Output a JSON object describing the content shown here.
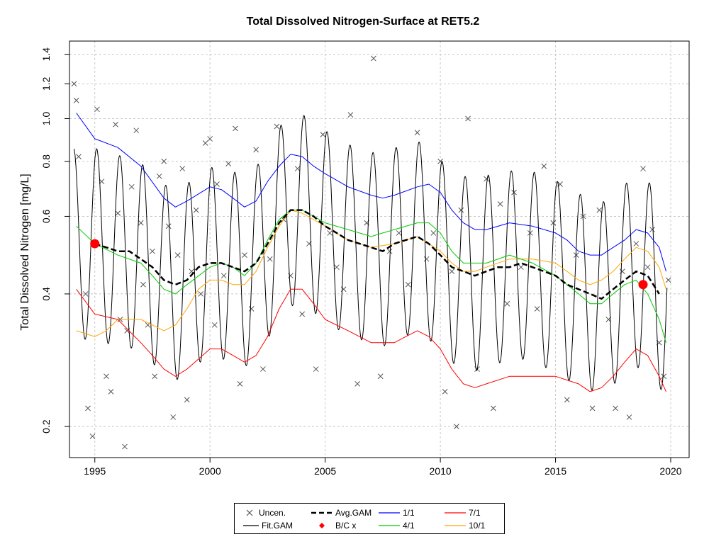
{
  "chart_data": {
    "type": "line",
    "title": "Total Dissolved Nitrogen-Surface at RET5.2",
    "xlabel": "",
    "ylabel": "Total Dissolved Nitrogen [mg/L]",
    "xlim": [
      1993.9,
      2020.8
    ],
    "ylim": [
      0.17,
      1.5
    ],
    "y_scale": "log",
    "x_ticks": [
      1995,
      2000,
      2005,
      2010,
      2015,
      2020
    ],
    "y_ticks": [
      0.2,
      0.4,
      0.6,
      0.8,
      1.0,
      1.2,
      1.4
    ],
    "y_tick_labels": [
      "0.2",
      "0.4",
      "0.6",
      "0.8",
      "1.0",
      "1.2",
      "1.4"
    ],
    "grid": true,
    "legend_position": "bottom",
    "series": [
      {
        "name": "Uncen.",
        "kind": "points",
        "color": "#555555",
        "x": [
          1994.1,
          1994.2,
          1994.3,
          1994.6,
          1994.7,
          1994.9,
          1995.1,
          1995.3,
          1995.5,
          1995.7,
          1995.9,
          1996.0,
          1996.1,
          1996.3,
          1996.4,
          1996.6,
          1996.8,
          1997.0,
          1997.1,
          1997.3,
          1997.5,
          1997.6,
          1997.8,
          1998.0,
          1998.2,
          1998.4,
          1998.6,
          1998.8,
          1999.0,
          1999.2,
          1999.4,
          1999.6,
          1999.8,
          2000.0,
          2000.2,
          2000.3,
          2000.6,
          2000.8,
          2001.1,
          2001.3,
          2001.5,
          2001.8,
          2002.0,
          2002.3,
          2002.6,
          2002.9,
          2003.2,
          2003.5,
          2003.8,
          2004.0,
          2004.3,
          2004.6,
          2004.9,
          2005.2,
          2005.5,
          2005.8,
          2006.1,
          2006.4,
          2006.8,
          2007.1,
          2007.4,
          2007.8,
          2008.2,
          2008.6,
          2009.0,
          2009.4,
          2009.7,
          2010.0,
          2010.2,
          2010.5,
          2010.7,
          2010.9,
          2011.2,
          2011.6,
          2012.0,
          2012.3,
          2012.6,
          2012.9,
          2013.2,
          2013.5,
          2013.9,
          2014.2,
          2014.5,
          2014.9,
          2015.2,
          2015.5,
          2015.9,
          2016.2,
          2016.6,
          2016.9,
          2017.3,
          2017.6,
          2017.9,
          2018.2,
          2018.5,
          2018.8,
          2019.0,
          2019.2,
          2019.5,
          2019.7,
          2019.9
        ],
        "y": [
          1.2,
          1.1,
          0.82,
          0.4,
          0.22,
          0.19,
          1.05,
          0.72,
          0.26,
          0.24,
          0.97,
          0.61,
          0.35,
          0.18,
          0.33,
          0.7,
          0.94,
          0.58,
          0.42,
          0.34,
          0.5,
          0.26,
          0.74,
          0.8,
          0.57,
          0.21,
          0.49,
          0.77,
          0.23,
          0.45,
          0.62,
          0.4,
          0.88,
          0.9,
          0.34,
          0.71,
          0.44,
          0.79,
          0.95,
          0.25,
          0.49,
          0.37,
          0.85,
          0.27,
          0.48,
          0.96,
          0.59,
          0.44,
          0.77,
          0.36,
          0.52,
          0.27,
          0.92,
          0.55,
          0.46,
          0.41,
          1.02,
          0.25,
          0.58,
          1.37,
          0.26,
          0.5,
          0.55,
          0.42,
          0.93,
          0.48,
          0.55,
          0.8,
          0.24,
          0.45,
          0.2,
          0.62,
          1.0,
          0.27,
          0.73,
          0.22,
          0.64,
          0.38,
          0.68,
          0.46,
          0.55,
          0.37,
          0.78,
          0.58,
          0.71,
          0.23,
          0.49,
          0.6,
          0.22,
          0.62,
          0.35,
          0.22,
          0.45,
          0.21,
          0.52,
          0.77,
          0.46,
          0.56,
          0.31,
          0.26,
          0.43
        ]
      },
      {
        "name": "Fit.GAM",
        "kind": "seasonal",
        "color": "#000000",
        "base_series": "Avg.GAM",
        "amplitude_log": 0.5
      },
      {
        "name": "Avg.GAM",
        "kind": "line",
        "color": "#000000",
        "dashed": true,
        "x": [
          1995.0,
          1995.5,
          1996.0,
          1996.5,
          1997.0,
          1997.5,
          1998.0,
          1998.5,
          1999.0,
          1999.5,
          2000.0,
          2000.5,
          2001.0,
          2001.5,
          2002.0,
          2002.5,
          2003.0,
          2003.5,
          2004.0,
          2004.5,
          2005.0,
          2005.5,
          2006.0,
          2006.5,
          2007.0,
          2007.5,
          2008.0,
          2008.5,
          2009.0,
          2009.5,
          2010.0,
          2010.5,
          2011.0,
          2011.5,
          2012.0,
          2012.5,
          2013.0,
          2013.5,
          2014.0,
          2014.5,
          2015.0,
          2015.5,
          2016.0,
          2016.5,
          2017.0,
          2017.5,
          2018.0,
          2018.5,
          2019.0,
          2019.5
        ],
        "y": [
          0.52,
          0.51,
          0.5,
          0.5,
          0.48,
          0.46,
          0.43,
          0.42,
          0.43,
          0.46,
          0.47,
          0.47,
          0.46,
          0.45,
          0.47,
          0.52,
          0.58,
          0.62,
          0.62,
          0.6,
          0.57,
          0.55,
          0.53,
          0.52,
          0.51,
          0.5,
          0.52,
          0.53,
          0.54,
          0.52,
          0.49,
          0.46,
          0.45,
          0.44,
          0.45,
          0.46,
          0.46,
          0.47,
          0.46,
          0.45,
          0.44,
          0.42,
          0.41,
          0.4,
          0.39,
          0.41,
          0.43,
          0.45,
          0.44,
          0.4
        ]
      },
      {
        "name": "1/1",
        "kind": "line",
        "color": "#0000ff",
        "x": [
          1994.2,
          1995.0,
          1996.0,
          1997.0,
          1998.0,
          1998.5,
          1999.0,
          2000.0,
          2000.5,
          2001.0,
          2001.5,
          2002.0,
          2002.5,
          2003.0,
          2003.5,
          2004.0,
          2004.5,
          2005.0,
          2006.0,
          2007.0,
          2007.5,
          2008.0,
          2009.0,
          2009.5,
          2010.0,
          2010.5,
          2011.0,
          2011.5,
          2012.0,
          2013.0,
          2014.0,
          2015.0,
          2015.5,
          2016.0,
          2016.5,
          2017.0,
          2017.5,
          2018.0,
          2018.5,
          2019.0,
          2019.5,
          2019.8
        ],
        "y": [
          1.03,
          0.9,
          0.86,
          0.78,
          0.66,
          0.63,
          0.65,
          0.7,
          0.69,
          0.66,
          0.63,
          0.65,
          0.72,
          0.78,
          0.83,
          0.82,
          0.78,
          0.75,
          0.7,
          0.67,
          0.66,
          0.67,
          0.7,
          0.71,
          0.68,
          0.62,
          0.58,
          0.56,
          0.56,
          0.58,
          0.57,
          0.55,
          0.53,
          0.5,
          0.49,
          0.49,
          0.51,
          0.53,
          0.56,
          0.55,
          0.51,
          0.45
        ]
      },
      {
        "name": "4/1",
        "kind": "line",
        "color": "#00cc00",
        "x": [
          1994.2,
          1995.0,
          1996.0,
          1997.0,
          1997.5,
          1998.0,
          1998.5,
          1999.0,
          2000.0,
          2000.5,
          2001.0,
          2001.5,
          2002.0,
          2002.5,
          2003.0,
          2003.5,
          2004.0,
          2004.5,
          2005.0,
          2006.0,
          2007.0,
          2007.5,
          2008.0,
          2009.0,
          2009.5,
          2010.0,
          2010.5,
          2011.0,
          2011.5,
          2012.0,
          2013.0,
          2014.0,
          2015.0,
          2015.5,
          2016.0,
          2016.5,
          2017.0,
          2017.5,
          2018.0,
          2018.5,
          2019.0,
          2019.5,
          2019.8
        ],
        "y": [
          0.57,
          0.52,
          0.49,
          0.47,
          0.44,
          0.41,
          0.4,
          0.42,
          0.46,
          0.47,
          0.46,
          0.44,
          0.47,
          0.53,
          0.59,
          0.62,
          0.62,
          0.6,
          0.58,
          0.56,
          0.54,
          0.55,
          0.56,
          0.58,
          0.58,
          0.55,
          0.5,
          0.47,
          0.47,
          0.47,
          0.49,
          0.47,
          0.44,
          0.42,
          0.4,
          0.38,
          0.38,
          0.4,
          0.42,
          0.43,
          0.4,
          0.35,
          0.31
        ]
      },
      {
        "name": "7/1",
        "kind": "line",
        "color": "#ff0000",
        "x": [
          1994.2,
          1995.0,
          1996.0,
          1997.0,
          1997.5,
          1998.0,
          1998.5,
          1999.0,
          2000.0,
          2000.5,
          2001.0,
          2001.5,
          2002.0,
          2002.5,
          2003.0,
          2003.5,
          2004.0,
          2004.5,
          2005.0,
          2006.0,
          2007.0,
          2008.0,
          2008.5,
          2009.0,
          2009.5,
          2010.0,
          2010.5,
          2011.0,
          2011.5,
          2012.0,
          2013.0,
          2014.0,
          2015.0,
          2016.0,
          2016.5,
          2017.0,
          2017.5,
          2018.0,
          2018.5,
          2019.0,
          2019.5,
          2019.8
        ],
        "y": [
          0.41,
          0.36,
          0.35,
          0.31,
          0.29,
          0.27,
          0.26,
          0.27,
          0.3,
          0.3,
          0.29,
          0.28,
          0.29,
          0.32,
          0.37,
          0.41,
          0.41,
          0.38,
          0.35,
          0.33,
          0.31,
          0.31,
          0.32,
          0.33,
          0.32,
          0.3,
          0.27,
          0.25,
          0.245,
          0.25,
          0.26,
          0.26,
          0.26,
          0.25,
          0.24,
          0.245,
          0.26,
          0.28,
          0.3,
          0.29,
          0.26,
          0.24
        ]
      },
      {
        "name": "10/1",
        "kind": "line",
        "color": "#ffa500",
        "x": [
          1994.2,
          1995.0,
          1995.5,
          1996.0,
          1997.0,
          1997.5,
          1998.0,
          1998.5,
          1999.0,
          1999.5,
          2000.0,
          2000.5,
          2001.0,
          2001.5,
          2002.0,
          2002.5,
          2003.0,
          2003.5,
          2004.0,
          2004.5,
          2005.0,
          2006.0,
          2007.0,
          2008.0,
          2009.0,
          2010.0,
          2010.5,
          2011.0,
          2011.5,
          2012.0,
          2013.0,
          2014.0,
          2015.0,
          2015.5,
          2016.0,
          2016.5,
          2017.0,
          2017.5,
          2018.0,
          2018.5,
          2019.0,
          2019.5,
          2019.8
        ],
        "y": [
          0.33,
          0.32,
          0.33,
          0.35,
          0.35,
          0.34,
          0.33,
          0.34,
          0.37,
          0.41,
          0.43,
          0.43,
          0.42,
          0.42,
          0.45,
          0.51,
          0.57,
          0.62,
          0.61,
          0.59,
          0.57,
          0.53,
          0.51,
          0.52,
          0.54,
          0.5,
          0.47,
          0.45,
          0.45,
          0.46,
          0.48,
          0.48,
          0.47,
          0.45,
          0.43,
          0.42,
          0.43,
          0.45,
          0.48,
          0.51,
          0.5,
          0.46,
          0.41
        ]
      },
      {
        "name": "B/C x",
        "kind": "points",
        "color": "#ff0000",
        "x": [
          1995.0,
          2018.8
        ],
        "y": [
          0.52,
          0.42
        ]
      }
    ]
  },
  "legend": {
    "items": [
      {
        "label": "Uncen."
      },
      {
        "label": "Fit.GAM"
      },
      {
        "label": "Avg.GAM"
      },
      {
        "label": "B/C x"
      },
      {
        "label": "1/1"
      },
      {
        "label": "4/1"
      },
      {
        "label": "7/1"
      },
      {
        "label": "10/1"
      }
    ]
  }
}
